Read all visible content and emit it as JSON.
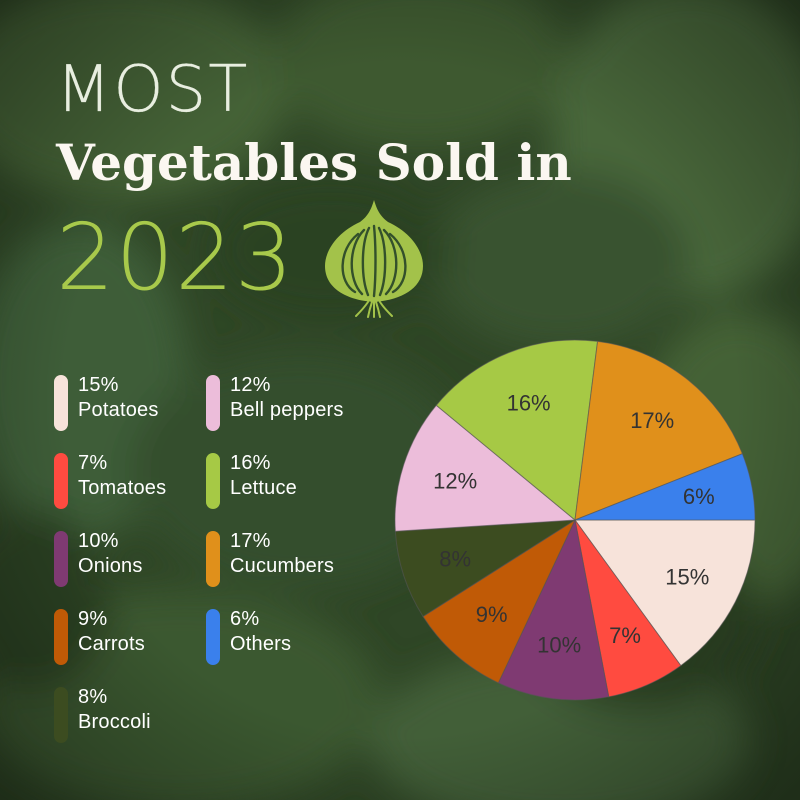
{
  "title": {
    "line1": "MOST",
    "line2": "Vegetables Sold in",
    "line3": "2023"
  },
  "icon": "onion-icon",
  "colors": {
    "background": "#2f4626",
    "title_accent": "#a8c94b",
    "onion": "#a3c24a",
    "pie_edge": "#555555"
  },
  "legend": [
    {
      "pct": "15%",
      "label": "Potatoes",
      "color": "#f7e3da"
    },
    {
      "pct": "7%",
      "label": "Tomatoes",
      "color": "#ff4b40"
    },
    {
      "pct": "10%",
      "label": "Onions",
      "color": "#7f3a72"
    },
    {
      "pct": "9%",
      "label": "Carrots",
      "color": "#c05a06"
    },
    {
      "pct": "8%",
      "label": "Broccoli",
      "color": "#3c4c20"
    },
    {
      "pct": "12%",
      "label": "Bell peppers",
      "color": "#ecbdda"
    },
    {
      "pct": "16%",
      "label": "Lettuce",
      "color": "#a6c945"
    },
    {
      "pct": "17%",
      "label": "Cucumbers",
      "color": "#e0901b"
    },
    {
      "pct": "6%",
      "label": "Others",
      "color": "#3a80ec"
    }
  ],
  "chart_data": {
    "type": "pie",
    "title": "MOST Vegetables Sold in 2023",
    "categories": [
      "Potatoes",
      "Tomatoes",
      "Onions",
      "Carrots",
      "Broccoli",
      "Bell peppers",
      "Lettuce",
      "Cucumbers",
      "Others"
    ],
    "values": [
      15,
      7,
      10,
      9,
      8,
      12,
      16,
      17,
      6
    ],
    "data_labels": [
      "15%",
      "7%",
      "10%",
      "9%",
      "8%",
      "12%",
      "16%",
      "17%",
      "6%"
    ],
    "colors": [
      "#f7e3da",
      "#ff4b40",
      "#7f3a72",
      "#c05a06",
      "#3c4c20",
      "#ecbdda",
      "#a6c945",
      "#e0901b",
      "#3a80ec"
    ],
    "start": "3 o'clock",
    "direction": "clockwise",
    "legend": "left"
  }
}
